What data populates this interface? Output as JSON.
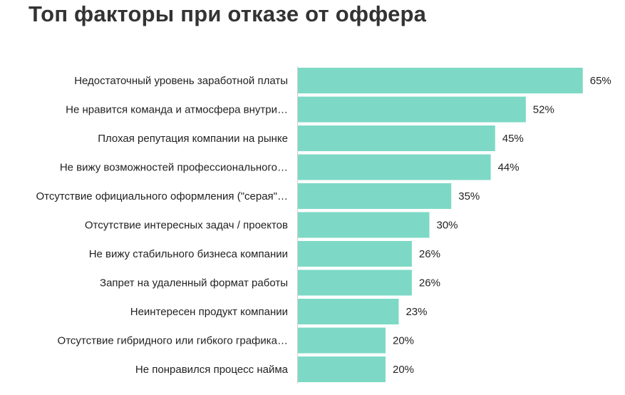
{
  "chart_data": {
    "type": "bar",
    "orientation": "horizontal",
    "title": "Топ факторы при отказе от оффера",
    "categories": [
      "Недостаточный уровень заработной платы",
      "Не нравится команда и атмосфера внутри…",
      "Плохая репутация компании на рынке",
      "Не вижу возможностей профессионального…",
      "Отсутствие официального оформления (\"серая\"…",
      "Отсутствие интересных задач / проектов",
      "Не вижу стабильного бизнеса компании",
      "Запрет на удаленный формат работы",
      "Неинтересен продукт компании",
      "Отсутствие гибридного или гибкого графика…",
      "Не понравился процесс найма"
    ],
    "values": [
      65,
      52,
      45,
      44,
      35,
      30,
      26,
      26,
      23,
      20,
      20
    ],
    "value_labels": [
      "65%",
      "52%",
      "45%",
      "44%",
      "35%",
      "30%",
      "26%",
      "26%",
      "23%",
      "20%",
      "20%"
    ],
    "unit": "%",
    "bar_color": "#7dd9c5",
    "grid": false,
    "legend": "none"
  }
}
